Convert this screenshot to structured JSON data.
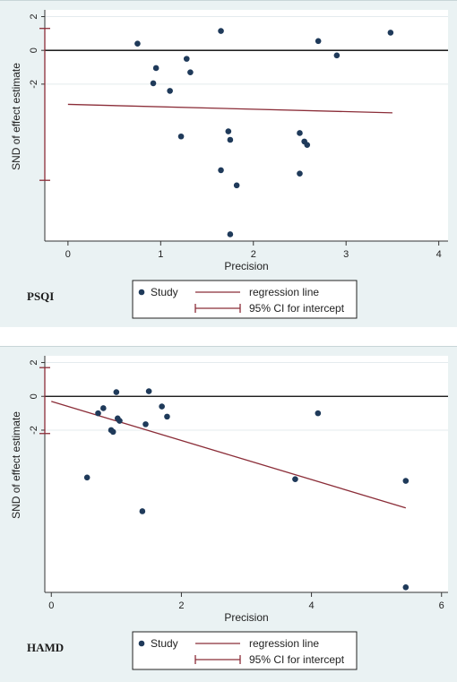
{
  "colors": {
    "dot": "#1f3a5a",
    "reg": "#8b2d38",
    "ci": "#8b2d38",
    "panel_bg": "#eaf2f3",
    "plot_bg": "#ffffff"
  },
  "legend": {
    "study": "Study",
    "regression": "regression line",
    "ci": "95% CI for intercept"
  },
  "chart_data": [
    {
      "type": "scatter",
      "tag": "PSQI",
      "xlabel": "Precision",
      "ylabel": "SND of effect estimate",
      "xlim": [
        -0.25,
        4.1
      ],
      "ylim": [
        -11.3,
        2.4
      ],
      "xticks": [
        0,
        1,
        2,
        3,
        4
      ],
      "yticks": [
        2,
        0,
        -2
      ],
      "grid": true,
      "legend_position": "bottom",
      "points": [
        [
          0.75,
          0.4
        ],
        [
          0.95,
          -1.05
        ],
        [
          0.92,
          -1.95
        ],
        [
          1.1,
          -2.4
        ],
        [
          1.28,
          -0.5
        ],
        [
          1.32,
          -1.3
        ],
        [
          1.22,
          -5.1
        ],
        [
          1.65,
          1.15
        ],
        [
          1.73,
          -4.8
        ],
        [
          1.75,
          -5.3
        ],
        [
          1.65,
          -7.1
        ],
        [
          1.82,
          -8.0
        ],
        [
          1.75,
          -10.9
        ],
        [
          2.5,
          -4.9
        ],
        [
          2.55,
          -5.4
        ],
        [
          2.58,
          -5.6
        ],
        [
          2.5,
          -7.3
        ],
        [
          2.7,
          0.55
        ],
        [
          2.9,
          -0.3
        ],
        [
          3.48,
          1.05
        ]
      ],
      "regression": {
        "x0": 0,
        "y0": -3.2,
        "x1": 3.5,
        "y1": -3.7
      },
      "ci_intercept": [
        -7.7,
        1.3
      ]
    },
    {
      "type": "scatter",
      "tag": "HAMD",
      "xlabel": "Precision",
      "ylabel": "SND of effect estimate",
      "xlim": [
        -0.1,
        6.1
      ],
      "ylim": [
        -11.6,
        2.4
      ],
      "xticks": [
        0,
        2,
        4,
        6
      ],
      "yticks": [
        2,
        0,
        -2
      ],
      "grid": true,
      "legend_position": "bottom",
      "points": [
        [
          0.55,
          -4.8
        ],
        [
          0.72,
          -1.0
        ],
        [
          0.8,
          -0.7
        ],
        [
          0.92,
          -2.0
        ],
        [
          0.95,
          -2.1
        ],
        [
          1.0,
          0.25
        ],
        [
          1.02,
          -1.3
        ],
        [
          1.05,
          -1.45
        ],
        [
          1.4,
          -6.8
        ],
        [
          1.45,
          -1.65
        ],
        [
          1.5,
          0.3
        ],
        [
          1.7,
          -0.6
        ],
        [
          1.78,
          -1.2
        ],
        [
          3.75,
          -4.9
        ],
        [
          4.1,
          -1.0
        ],
        [
          5.45,
          -5.0
        ],
        [
          5.45,
          -11.3
        ]
      ],
      "regression": {
        "x0": 0,
        "y0": -0.3,
        "x1": 5.45,
        "y1": -6.6
      },
      "ci_intercept": [
        -2.2,
        1.7
      ]
    }
  ]
}
